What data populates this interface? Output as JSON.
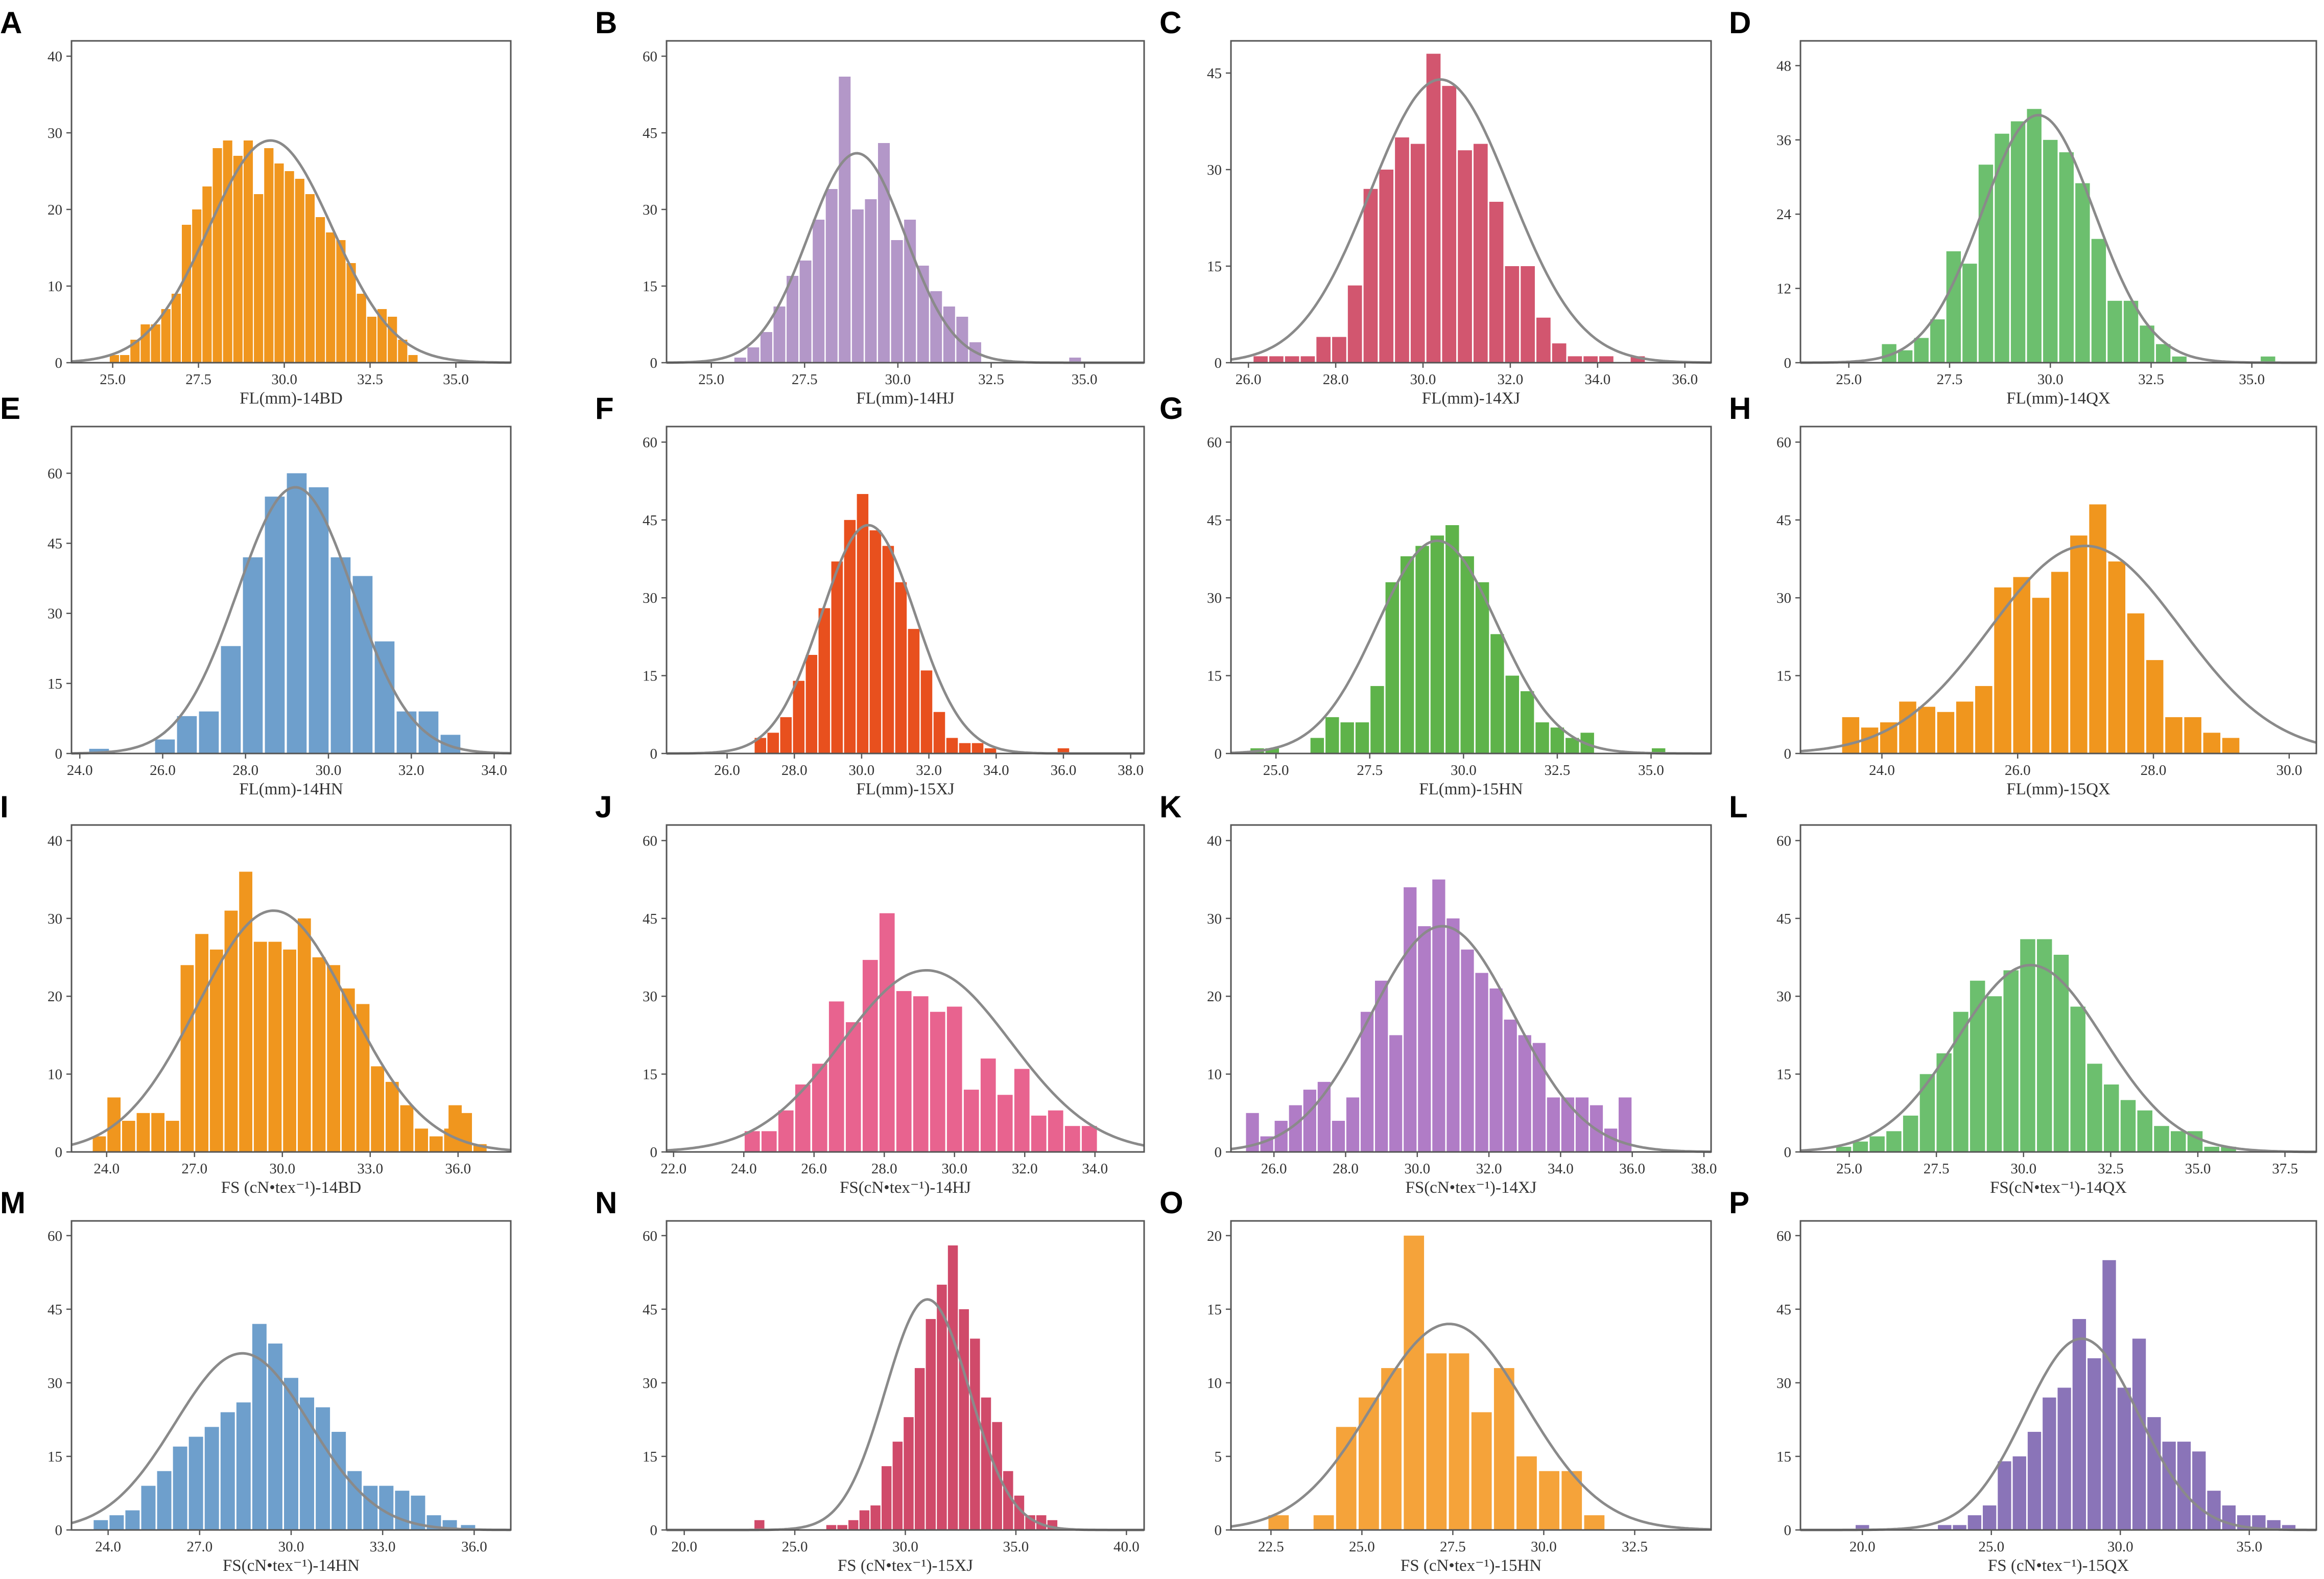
{
  "figure": {
    "title": ""
  },
  "chart_data": [
    {
      "label": "A",
      "type": "bar",
      "subtype": "histogram",
      "xlabel": "FL(mm)-14BD",
      "ylabel": "",
      "color": "#F0961E",
      "xlim": [
        23.8,
        36.6
      ],
      "ylim": [
        0,
        42
      ],
      "xticks": [
        25.0,
        27.5,
        30.0,
        32.5,
        35.0
      ],
      "xtick_labels": [
        "25.0",
        "27.5",
        "30.0",
        "32.5",
        "35.0"
      ],
      "yticks": [
        0,
        10,
        20,
        30,
        40
      ],
      "ytick_labels": [
        "0",
        "10",
        "20",
        "30",
        "40"
      ],
      "bin_start": 24.9,
      "bin_width": 0.3,
      "values": [
        1,
        1,
        3,
        5,
        5,
        7,
        9,
        18,
        20,
        23,
        28,
        29,
        27,
        29,
        22,
        28,
        26,
        25,
        24,
        22,
        19,
        17,
        16,
        13,
        9,
        6,
        7,
        6,
        3,
        1
      ],
      "fit": {
        "mean": 29.6,
        "sd": 1.8,
        "peak": 29
      }
    },
    {
      "label": "B",
      "type": "bar",
      "subtype": "histogram",
      "xlabel": "FL(mm)-14HJ",
      "ylabel": "",
      "color": "#B397C8",
      "xlim": [
        23.8,
        36.6
      ],
      "ylim": [
        0,
        63
      ],
      "xticks": [
        25.0,
        27.5,
        30.0,
        32.5,
        35.0
      ],
      "xtick_labels": [
        "25.0",
        "27.5",
        "30.0",
        "32.5",
        "35.0"
      ],
      "yticks": [
        0,
        15,
        30,
        45,
        60
      ],
      "ytick_labels": [
        "0",
        "15",
        "30",
        "45",
        "60"
      ],
      "bin_start": 25.6,
      "bin_width": 0.35,
      "values": [
        1,
        3,
        6,
        11,
        17,
        20,
        28,
        34,
        56,
        30,
        32,
        43,
        24,
        28,
        19,
        14,
        11,
        9,
        4
      ],
      "extra_bins": [
        {
          "x": 34.75,
          "value": 1
        }
      ],
      "fit": {
        "mean": 28.9,
        "sd": 1.3,
        "peak": 41
      }
    },
    {
      "label": "C",
      "type": "bar",
      "subtype": "histogram",
      "xlabel": "FL(mm)-14XJ",
      "ylabel": "",
      "color": "#D2566F",
      "xlim": [
        25.6,
        36.6
      ],
      "ylim": [
        0,
        50
      ],
      "xticks": [
        26.0,
        28.0,
        30.0,
        32.0,
        34.0,
        36.0
      ],
      "xtick_labels": [
        "26.0",
        "28.0",
        "30.0",
        "32.0",
        "34.0",
        "36.0"
      ],
      "yticks": [
        0,
        15,
        30,
        45
      ],
      "ytick_labels": [
        "0",
        "15",
        "30",
        "45"
      ],
      "bin_start": 26.1,
      "bin_width": 0.36,
      "values": [
        1,
        1,
        1,
        1,
        4,
        4,
        12,
        27,
        30,
        35,
        34,
        48,
        43,
        33,
        34,
        25,
        15,
        15,
        7,
        3,
        1,
        1,
        1,
        0,
        1
      ],
      "fit": {
        "mean": 30.4,
        "sd": 1.6,
        "peak": 44
      }
    },
    {
      "label": "D",
      "type": "bar",
      "subtype": "histogram",
      "xlabel": "FL(mm)-14QX",
      "ylabel": "",
      "color": "#6CBF6E",
      "xlim": [
        23.8,
        36.6
      ],
      "ylim": [
        0,
        52
      ],
      "xticks": [
        25.0,
        27.5,
        30.0,
        32.5,
        35.0
      ],
      "xtick_labels": [
        "25.0",
        "27.5",
        "30.0",
        "32.5",
        "35.0"
      ],
      "yticks": [
        0,
        12,
        24,
        36,
        48
      ],
      "ytick_labels": [
        "0",
        "12",
        "24",
        "36",
        "48"
      ],
      "bin_start": 25.8,
      "bin_width": 0.4,
      "values": [
        3,
        2,
        4,
        7,
        18,
        16,
        32,
        37,
        39,
        41,
        36,
        34,
        29,
        20,
        10,
        10,
        6,
        3,
        1
      ],
      "extra_bins": [
        {
          "x": 35.4,
          "value": 1
        }
      ],
      "fit": {
        "mean": 29.7,
        "sd": 1.4,
        "peak": 40
      }
    },
    {
      "label": "E",
      "type": "bar",
      "subtype": "histogram",
      "xlabel": "FL(mm)-14HN",
      "ylabel": "",
      "color": "#6E9FCC",
      "xlim": [
        23.8,
        34.4
      ],
      "ylim": [
        0,
        70
      ],
      "xticks": [
        24.0,
        26.0,
        28.0,
        30.0,
        32.0,
        34.0
      ],
      "xtick_labels": [
        "24.0",
        "26.0",
        "28.0",
        "30.0",
        "32.0",
        "34.0"
      ],
      "yticks": [
        0,
        15,
        30,
        45,
        60
      ],
      "ytick_labels": [
        "0",
        "15",
        "30",
        "45",
        "60"
      ],
      "bin_start": 24.2,
      "bin_width": 0.53,
      "values": [
        1,
        0,
        0,
        3,
        8,
        9,
        23,
        42,
        55,
        60,
        57,
        42,
        38,
        24,
        9,
        9,
        4
      ],
      "fit": {
        "mean": 29.2,
        "sd": 1.4,
        "peak": 57
      }
    },
    {
      "label": "F",
      "type": "bar",
      "subtype": "histogram",
      "xlabel": "FL(mm)-15XJ",
      "ylabel": "",
      "color": "#E8501E",
      "xlim": [
        24.2,
        38.4
      ],
      "ylim": [
        0,
        63
      ],
      "xticks": [
        26.0,
        28.0,
        30.0,
        32.0,
        34.0,
        36.0,
        38.0
      ],
      "xtick_labels": [
        "26.0",
        "28.0",
        "30.0",
        "32.0",
        "34.0",
        "36.0",
        "38.0"
      ],
      "yticks": [
        0,
        15,
        30,
        45,
        60
      ],
      "ytick_labels": [
        "0",
        "15",
        "30",
        "45",
        "60"
      ],
      "bin_start": 26.8,
      "bin_width": 0.38,
      "values": [
        3,
        4,
        7,
        14,
        19,
        28,
        37,
        45,
        50,
        43,
        40,
        33,
        24,
        16,
        8,
        3,
        2,
        2,
        1
      ],
      "extra_bins": [
        {
          "x": 36.0,
          "value": 1
        }
      ],
      "fit": {
        "mean": 30.2,
        "sd": 1.4,
        "peak": 44
      }
    },
    {
      "label": "G",
      "type": "bar",
      "subtype": "histogram",
      "xlabel": "FL(mm)-15HN",
      "ylabel": "",
      "color": "#5EB34A",
      "xlim": [
        23.8,
        36.6
      ],
      "ylim": [
        0,
        63
      ],
      "xticks": [
        25.0,
        27.5,
        30.0,
        32.5,
        35.0
      ],
      "xtick_labels": [
        "25.0",
        "27.5",
        "30.0",
        "32.5",
        "35.0"
      ],
      "yticks": [
        0,
        15,
        30,
        45,
        60
      ],
      "ytick_labels": [
        "0",
        "15",
        "30",
        "45",
        "60"
      ],
      "bin_start": 24.3,
      "bin_width": 0.4,
      "values": [
        1,
        1,
        0,
        0,
        3,
        7,
        6,
        6,
        13,
        33,
        38,
        40,
        42,
        44,
        38,
        33,
        23,
        15,
        12,
        6,
        5,
        3,
        4
      ],
      "extra_bins": [
        {
          "x": 35.2,
          "value": 1
        }
      ],
      "fit": {
        "mean": 29.3,
        "sd": 1.6,
        "peak": 41
      }
    },
    {
      "label": "H",
      "type": "bar",
      "subtype": "histogram",
      "xlabel": "FL(mm)-15QX",
      "ylabel": "",
      "color": "#F0961E",
      "xlim": [
        22.8,
        30.4
      ],
      "ylim": [
        0,
        63
      ],
      "xticks": [
        24.0,
        26.0,
        28.0,
        30.0
      ],
      "xtick_labels": [
        "24.0",
        "26.0",
        "28.0",
        "30.0"
      ],
      "yticks": [
        0,
        15,
        30,
        45,
        60
      ],
      "ytick_labels": [
        "0",
        "15",
        "30",
        "45",
        "60"
      ],
      "bin_start": 23.4,
      "bin_width": 0.28,
      "values": [
        7,
        5,
        6,
        10,
        9,
        8,
        10,
        13,
        32,
        34,
        30,
        35,
        42,
        48,
        37,
        27,
        18,
        7,
        7,
        4,
        3
      ],
      "fit": {
        "mean": 27.0,
        "sd": 1.4,
        "peak": 40
      }
    },
    {
      "label": "I",
      "type": "bar",
      "subtype": "histogram",
      "xlabel": "FS (cN•tex⁻¹)-14BD",
      "ylabel": "",
      "color": "#F0961E",
      "xlim": [
        22.8,
        37.8
      ],
      "ylim": [
        0,
        42
      ],
      "xticks": [
        24.0,
        27.0,
        30.0,
        33.0,
        36.0
      ],
      "xtick_labels": [
        "24.0",
        "27.0",
        "30.0",
        "33.0",
        "36.0"
      ],
      "yticks": [
        0,
        10,
        20,
        30,
        40
      ],
      "ytick_labels": [
        "0",
        "10",
        "20",
        "30",
        "40"
      ],
      "bin_start": 23.5,
      "bin_width": 0.5,
      "values": [
        2,
        7,
        4,
        5,
        5,
        4,
        24,
        28,
        26,
        31,
        36,
        27,
        27,
        26,
        30,
        25,
        24,
        21,
        19,
        11,
        9,
        6,
        3,
        2,
        3,
        5,
        1
      ],
      "extra_bins": [
        {
          "x": 35.9,
          "value": 6
        }
      ],
      "fit": {
        "mean": 29.7,
        "sd": 2.6,
        "peak": 31
      }
    },
    {
      "label": "J",
      "type": "bar",
      "subtype": "histogram",
      "xlabel": "FS(cN•tex⁻¹)-14HJ",
      "ylabel": "",
      "color": "#E8638F",
      "xlim": [
        21.8,
        35.4
      ],
      "ylim": [
        0,
        63
      ],
      "xticks": [
        22.0,
        24.0,
        26.0,
        28.0,
        30.0,
        32.0,
        34.0
      ],
      "xtick_labels": [
        "22.0",
        "24.0",
        "26.0",
        "28.0",
        "30.0",
        "32.0",
        "34.0"
      ],
      "yticks": [
        0,
        15,
        30,
        45,
        60
      ],
      "ytick_labels": [
        "0",
        "15",
        "30",
        "45",
        "60"
      ],
      "bin_start": 24.0,
      "bin_width": 0.48,
      "values": [
        4,
        4,
        8,
        13,
        17,
        29,
        25,
        37,
        46,
        31,
        30,
        27,
        28,
        12,
        18,
        11,
        16,
        7,
        8,
        5,
        5
      ],
      "fit": {
        "mean": 29.2,
        "sd": 2.4,
        "peak": 35
      }
    },
    {
      "label": "K",
      "type": "bar",
      "subtype": "histogram",
      "xlabel": "FS(cN•tex⁻¹)-14XJ",
      "ylabel": "",
      "color": "#B07CC6",
      "xlim": [
        24.8,
        38.2
      ],
      "ylim": [
        0,
        42
      ],
      "xticks": [
        26.0,
        28.0,
        30.0,
        32.0,
        34.0,
        36.0,
        38.0
      ],
      "xtick_labels": [
        "26.0",
        "28.0",
        "30.0",
        "32.0",
        "34.0",
        "36.0",
        "38.0"
      ],
      "yticks": [
        0,
        10,
        20,
        30,
        40
      ],
      "ytick_labels": [
        "0",
        "10",
        "20",
        "30",
        "40"
      ],
      "bin_start": 25.2,
      "bin_width": 0.4,
      "values": [
        5,
        2,
        4,
        6,
        8,
        9,
        4,
        7,
        18,
        22,
        15,
        34,
        29,
        35,
        30,
        26,
        23,
        21,
        17,
        15,
        14,
        7,
        7,
        7,
        6,
        3,
        7
      ],
      "fit": {
        "mean": 30.7,
        "sd": 2.0,
        "peak": 29
      }
    },
    {
      "label": "L",
      "type": "bar",
      "subtype": "histogram",
      "xlabel": "FS(cN•tex⁻¹)-14QX",
      "ylabel": "",
      "color": "#6CBF6E",
      "xlim": [
        23.6,
        38.4
      ],
      "ylim": [
        0,
        63
      ],
      "xticks": [
        25.0,
        27.5,
        30.0,
        32.5,
        35.0,
        37.5
      ],
      "xtick_labels": [
        "25.0",
        "27.5",
        "30.0",
        "32.5",
        "35.0",
        "37.5"
      ],
      "yticks": [
        0,
        15,
        30,
        45,
        60
      ],
      "ytick_labels": [
        "0",
        "15",
        "30",
        "45",
        "60"
      ],
      "bin_start": 24.6,
      "bin_width": 0.48,
      "values": [
        1,
        2,
        3,
        4,
        7,
        15,
        19,
        27,
        33,
        30,
        35,
        41,
        41,
        38,
        28,
        17,
        13,
        10,
        8,
        5,
        4,
        4,
        1,
        1
      ],
      "fit": {
        "mean": 30.2,
        "sd": 2.1,
        "peak": 36
      }
    },
    {
      "label": "M",
      "type": "bar",
      "subtype": "histogram",
      "xlabel": "FS(cN•tex⁻¹)-14HN",
      "ylabel": "",
      "color": "#6E9FCC",
      "xlim": [
        22.8,
        37.2
      ],
      "ylim": [
        0,
        63
      ],
      "xticks": [
        24.0,
        27.0,
        30.0,
        33.0,
        36.0
      ],
      "xtick_labels": [
        "24.0",
        "27.0",
        "30.0",
        "33.0",
        "36.0"
      ],
      "yticks": [
        0,
        15,
        30,
        45,
        60
      ],
      "ytick_labels": [
        "0",
        "15",
        "30",
        "45",
        "60"
      ],
      "bin_start": 23.5,
      "bin_width": 0.52,
      "values": [
        2,
        3,
        4,
        9,
        12,
        17,
        19,
        21,
        24,
        26,
        42,
        38,
        31,
        27,
        25,
        20,
        12,
        9,
        9,
        8,
        7,
        3,
        2
      ],
      "extra_bins": [
        {
          "x": 35.8,
          "value": 1
        }
      ],
      "fit": {
        "mean": 28.4,
        "sd": 2.2,
        "peak": 36
      }
    },
    {
      "label": "N",
      "type": "bar",
      "subtype": "histogram",
      "xlabel": "FS (cN•tex⁻¹)-15XJ",
      "ylabel": "",
      "color": "#D04A6A",
      "xlim": [
        19.2,
        40.8
      ],
      "ylim": [
        0,
        63
      ],
      "xticks": [
        20.0,
        25.0,
        30.0,
        35.0,
        40.0
      ],
      "xtick_labels": [
        "20.0",
        "25.0",
        "30.0",
        "35.0",
        "40.0"
      ],
      "yticks": [
        0,
        15,
        30,
        45,
        60
      ],
      "ytick_labels": [
        "0",
        "15",
        "30",
        "45",
        "60"
      ],
      "bin_start": 26.4,
      "bin_width": 0.5,
      "values": [
        1,
        1,
        2,
        4,
        5,
        13,
        18,
        23,
        33,
        43,
        50,
        58,
        45,
        39,
        27,
        22,
        12,
        7,
        3,
        3,
        2
      ],
      "extra_bins": [
        {
          "x": 23.4,
          "value": 2
        }
      ],
      "fit": {
        "mean": 31.0,
        "sd": 1.9,
        "peak": 47
      }
    },
    {
      "label": "O",
      "type": "bar",
      "subtype": "histogram",
      "xlabel": "FS (cN•tex⁻¹)-15HN",
      "ylabel": "",
      "color": "#F5A33A",
      "xlim": [
        21.4,
        34.6
      ],
      "ylim": [
        0,
        21
      ],
      "xticks": [
        22.5,
        25.0,
        27.5,
        30.0,
        32.5
      ],
      "xtick_labels": [
        "22.5",
        "25.0",
        "27.5",
        "30.0",
        "32.5"
      ],
      "yticks": [
        0,
        5,
        10,
        15,
        20
      ],
      "ytick_labels": [
        "0",
        "5",
        "10",
        "15",
        "20"
      ],
      "bin_start": 22.4,
      "bin_width": 0.62,
      "values": [
        1,
        0,
        1,
        7,
        9,
        11,
        20,
        12,
        12,
        8,
        11,
        5,
        4,
        4,
        1
      ],
      "fit": {
        "mean": 27.4,
        "sd": 2.1,
        "peak": 14
      }
    },
    {
      "label": "P",
      "type": "bar",
      "subtype": "histogram",
      "xlabel": "FS (cN•tex⁻¹)-15QX",
      "ylabel": "",
      "color": "#8A74B8",
      "xlim": [
        17.6,
        37.6
      ],
      "ylim": [
        0,
        63
      ],
      "xticks": [
        20.0,
        25.0,
        30.0,
        35.0
      ],
      "xtick_labels": [
        "20.0",
        "25.0",
        "30.0",
        "35.0"
      ],
      "yticks": [
        0,
        15,
        30,
        45,
        60
      ],
      "ytick_labels": [
        "0",
        "15",
        "30",
        "45",
        "60"
      ],
      "bin_start": 22.9,
      "bin_width": 0.58,
      "values": [
        1,
        1,
        3,
        5,
        14,
        15,
        20,
        27,
        29,
        43,
        35,
        55,
        29,
        39,
        23,
        18,
        18,
        16,
        8,
        5,
        3,
        3,
        2,
        1
      ],
      "extra_bins": [
        {
          "x": 20.0,
          "value": 1
        }
      ],
      "fit": {
        "mean": 28.5,
        "sd": 2.2,
        "peak": 39
      }
    }
  ]
}
